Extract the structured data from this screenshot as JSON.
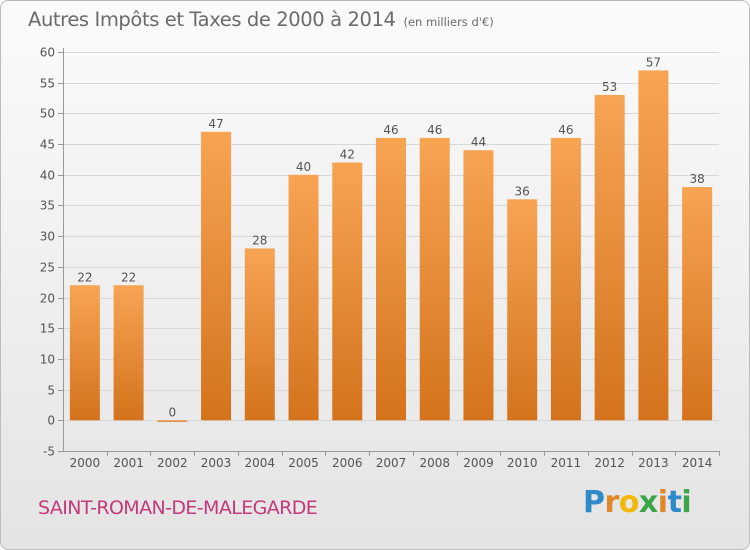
{
  "header": {
    "title": "Autres Impôts et Taxes de 2000 à 2014",
    "unit": "(en milliers d'€)"
  },
  "footer": {
    "commune": "SAINT-ROMAN-DE-MALEGARDE",
    "logo_letters": [
      "P",
      "r",
      "o",
      "x",
      "i",
      "t",
      "i"
    ],
    "logo_colors": [
      "#2f8ac9",
      "#e0872a",
      "#f2b707",
      "#3aa648",
      "#e0872a",
      "#2f8ac9",
      "#3aa648"
    ]
  },
  "colors": {
    "bar_top": "#f7a453",
    "bar_bottom": "#d4731c",
    "commune_text": "#c4397a",
    "axis_text": "#555555"
  },
  "chart_data": {
    "type": "bar",
    "title": "Autres Impôts et Taxes de 2000 à 2014",
    "subtitle": "(en milliers d'€)",
    "xlabel": "",
    "ylabel": "",
    "categories": [
      "2000",
      "2001",
      "2002",
      "2003",
      "2004",
      "2005",
      "2006",
      "2007",
      "2008",
      "2009",
      "2010",
      "2011",
      "2012",
      "2013",
      "2014"
    ],
    "values": [
      22,
      22,
      0,
      47,
      28,
      40,
      42,
      46,
      46,
      44,
      36,
      46,
      53,
      57,
      38
    ],
    "value_labels": [
      "22",
      "22",
      "0",
      "47",
      "28",
      "40",
      "42",
      "46",
      "46",
      "44",
      "36",
      "46",
      "53",
      "57",
      "38"
    ],
    "ylim": [
      -5,
      60
    ],
    "yticks": [
      -5,
      0,
      5,
      10,
      15,
      20,
      25,
      30,
      35,
      40,
      45,
      50,
      55,
      60
    ],
    "grid": true,
    "legend": "none"
  }
}
